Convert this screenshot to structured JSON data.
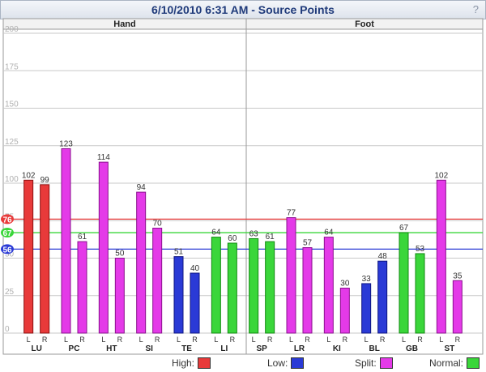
{
  "window": {
    "title": "6/10/2010 6:31 AM - Source Points",
    "help_label": "?"
  },
  "colors": {
    "high": "#e83a3a",
    "low": "#2a3ad6",
    "split": "#e43ae8",
    "normal": "#3ad63a",
    "grid": "#c8c8c8",
    "axis_text": "#b0b0b0"
  },
  "chart_data": {
    "type": "bar",
    "ylim": [
      0,
      200
    ],
    "y_ticks": [
      0,
      25,
      50,
      75,
      100,
      125,
      150,
      175,
      200
    ],
    "sections": [
      "Hand",
      "Foot"
    ],
    "reference_lines": [
      {
        "name": "High",
        "value": 76,
        "label": "76",
        "color": "#e83a3a"
      },
      {
        "name": "Normal",
        "value": 67,
        "label": "67",
        "color": "#3ad63a"
      },
      {
        "name": "Low",
        "value": 56,
        "label": "56",
        "color": "#2a3ad6"
      }
    ],
    "side_labels": [
      "L",
      "R"
    ],
    "categories": [
      "LU",
      "PC",
      "HT",
      "SI",
      "TE",
      "LI",
      "SP",
      "LR",
      "KI",
      "BL",
      "GB",
      "ST"
    ],
    "values": [
      [
        102,
        99
      ],
      [
        123,
        61
      ],
      [
        114,
        50
      ],
      [
        94,
        70
      ],
      [
        51,
        40
      ],
      [
        64,
        60
      ],
      [
        63,
        61
      ],
      [
        77,
        57
      ],
      [
        64,
        30
      ],
      [
        33,
        48
      ],
      [
        67,
        53
      ],
      [
        102,
        35
      ]
    ],
    "value_labels": [
      [
        "102",
        "99"
      ],
      [
        "123",
        "61"
      ],
      [
        "114",
        "50"
      ],
      [
        "94",
        "70"
      ],
      [
        "51",
        "40"
      ],
      [
        "64",
        "60"
      ],
      [
        "63",
        "61"
      ],
      [
        "77",
        "57"
      ],
      [
        "64",
        "30"
      ],
      [
        "33",
        "48"
      ],
      [
        "67",
        "53"
      ],
      [
        "102",
        "35"
      ]
    ],
    "status": [
      [
        "high",
        "high"
      ],
      [
        "split",
        "split"
      ],
      [
        "split",
        "split"
      ],
      [
        "split",
        "split"
      ],
      [
        "low",
        "low"
      ],
      [
        "normal",
        "normal"
      ],
      [
        "normal",
        "normal"
      ],
      [
        "split",
        "split"
      ],
      [
        "split",
        "split"
      ],
      [
        "low",
        "low"
      ],
      [
        "normal",
        "normal"
      ],
      [
        "split",
        "split"
      ]
    ]
  },
  "legend": [
    {
      "label": "High:",
      "key": "high"
    },
    {
      "label": "Low:",
      "key": "low"
    },
    {
      "label": "Split:",
      "key": "split"
    },
    {
      "label": "Normal:",
      "key": "normal"
    }
  ]
}
